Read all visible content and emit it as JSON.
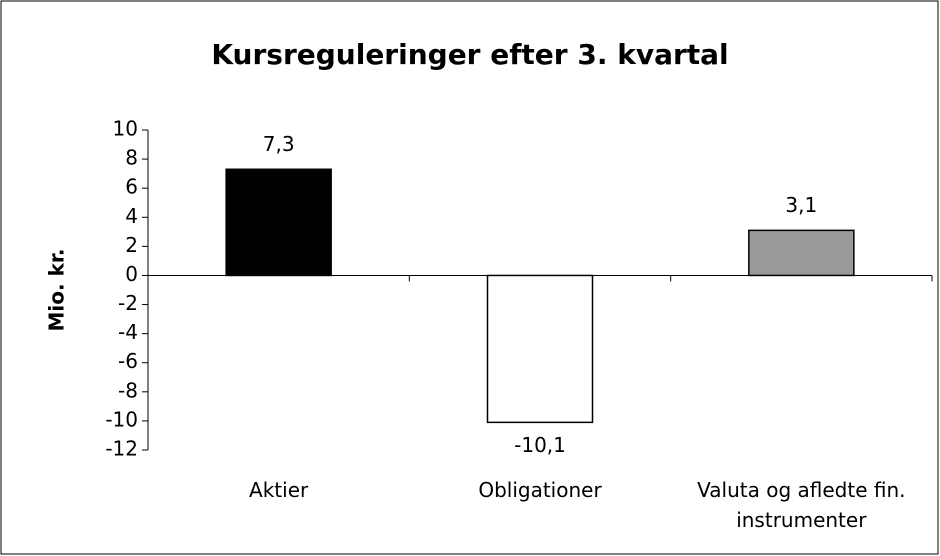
{
  "chart_data": {
    "type": "bar",
    "title": "Kursreguleringer efter 3. kvartal",
    "y_label": "Mio. kr.",
    "categories": [
      "Aktier",
      "Obligationer",
      "Valuta og afledte fin. instrumenter"
    ],
    "values": [
      7.3,
      -10.1,
      3.1
    ],
    "value_labels": [
      "7,3",
      "-10,1",
      "3,1"
    ],
    "colors": [
      "#000000",
      "#ffffff",
      "#999999"
    ],
    "ylim": [
      -12,
      10
    ],
    "yticks": [
      -12,
      -10,
      -8,
      -6,
      -4,
      -2,
      0,
      2,
      4,
      6,
      8,
      10
    ],
    "grid": false
  }
}
